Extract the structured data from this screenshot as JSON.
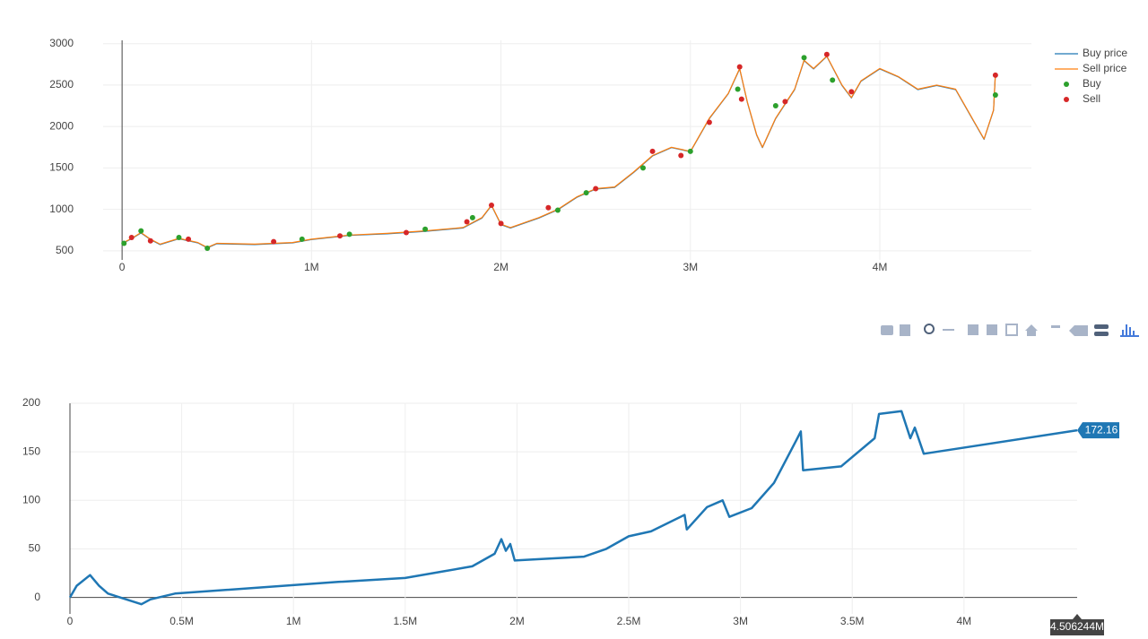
{
  "chart_data": [
    {
      "type": "line",
      "xlim": [
        -100000,
        4800000
      ],
      "ylim": [
        390,
        3040
      ],
      "xticks": [
        0,
        {
          "value": 1000000,
          "label": "1M"
        },
        {
          "value": 2000000,
          "label": "2M"
        },
        {
          "value": 3000000,
          "label": "3M"
        },
        {
          "value": 4000000,
          "label": "4M"
        }
      ],
      "yticks": [
        500,
        1000,
        1500,
        2000,
        2500,
        3000
      ],
      "grid": true,
      "legend": "right",
      "series": [
        {
          "name": "Buy price",
          "color": "#1f77b4",
          "mode": "lines",
          "x": [
            0,
            50000,
            100000,
            150000,
            200000,
            300000,
            400000,
            450000,
            500000,
            700000,
            900000,
            1000000,
            1200000,
            1400000,
            1600000,
            1800000,
            1900000,
            1950000,
            2000000,
            2050000,
            2200000,
            2300000,
            2400000,
            2500000,
            2600000,
            2700000,
            2800000,
            2900000,
            3000000,
            3100000,
            3200000,
            3260000,
            3300000,
            3350000,
            3380000,
            3450000,
            3550000,
            3600000,
            3650000,
            3720000,
            3800000,
            3850000,
            3900000,
            4000000,
            4100000,
            4200000,
            4300000,
            4400000,
            4500000,
            4550000,
            4600000,
            4610000
          ],
          "values": [
            585,
            645,
            715,
            635,
            575,
            645,
            595,
            535,
            585,
            575,
            595,
            635,
            685,
            705,
            735,
            775,
            895,
            1045,
            815,
            775,
            895,
            995,
            1145,
            1245,
            1265,
            1445,
            1645,
            1745,
            1695,
            2095,
            2395,
            2695,
            2295,
            1895,
            1745,
            2095,
            2445,
            2795,
            2695,
            2845,
            2495,
            2345,
            2545,
            2695,
            2595,
            2445,
            2495,
            2445,
            2045,
            1845,
            2195,
            2645
          ]
        },
        {
          "name": "Sell price",
          "color": "#ff7f0e",
          "mode": "lines",
          "x": [
            0,
            50000,
            100000,
            150000,
            200000,
            300000,
            400000,
            450000,
            500000,
            700000,
            900000,
            1000000,
            1200000,
            1400000,
            1600000,
            1800000,
            1900000,
            1950000,
            2000000,
            2050000,
            2200000,
            2300000,
            2400000,
            2500000,
            2600000,
            2700000,
            2800000,
            2900000,
            3000000,
            3100000,
            3200000,
            3260000,
            3300000,
            3350000,
            3380000,
            3450000,
            3550000,
            3600000,
            3650000,
            3720000,
            3800000,
            3850000,
            3900000,
            4000000,
            4100000,
            4200000,
            4300000,
            4400000,
            4500000,
            4550000,
            4600000,
            4610000
          ],
          "values": [
            590,
            650,
            720,
            640,
            580,
            650,
            600,
            540,
            590,
            580,
            600,
            640,
            690,
            710,
            740,
            780,
            900,
            1050,
            820,
            780,
            900,
            1000,
            1150,
            1250,
            1270,
            1450,
            1650,
            1750,
            1700,
            2100,
            2400,
            2700,
            2300,
            1900,
            1750,
            2100,
            2450,
            2800,
            2700,
            2850,
            2500,
            2350,
            2550,
            2700,
            2600,
            2450,
            2500,
            2450,
            2050,
            1850,
            2200,
            2650
          ]
        },
        {
          "name": "Buy",
          "color": "#2ca02c",
          "mode": "markers",
          "x": [
            10000,
            100000,
            300000,
            450000,
            950000,
            1200000,
            1600000,
            1850000,
            2300000,
            2450000,
            2750000,
            3000000,
            3250000,
            3450000,
            3600000,
            3750000,
            4610000
          ],
          "values": [
            590,
            740,
            660,
            530,
            640,
            700,
            760,
            900,
            990,
            1200,
            1500,
            1700,
            2450,
            2250,
            2830,
            2560,
            2380
          ]
        },
        {
          "name": "Sell",
          "color": "#d62728",
          "mode": "markers",
          "x": [
            50000,
            150000,
            350000,
            800000,
            1150000,
            1500000,
            1820000,
            1950000,
            2000000,
            2250000,
            2500000,
            2800000,
            2950000,
            3100000,
            3260000,
            3270000,
            3500000,
            3720000,
            3850000,
            4610000
          ],
          "values": [
            660,
            620,
            640,
            610,
            680,
            720,
            850,
            1050,
            830,
            1020,
            1250,
            1700,
            1650,
            2050,
            2720,
            2330,
            2300,
            2870,
            2420,
            2620
          ]
        }
      ]
    },
    {
      "type": "line",
      "xlim": [
        0,
        4506244
      ],
      "ylim": [
        -17,
        200
      ],
      "xticks": [
        0,
        {
          "value": 500000,
          "label": "0.5M"
        },
        {
          "value": 1000000,
          "label": "1M"
        },
        {
          "value": 1500000,
          "label": "1.5M"
        },
        {
          "value": 2000000,
          "label": "2M"
        },
        {
          "value": 2500000,
          "label": "2.5M"
        },
        {
          "value": 3000000,
          "label": "3M"
        },
        {
          "value": 3500000,
          "label": "3.5M"
        },
        {
          "value": 4000000,
          "label": "4M"
        }
      ],
      "yticks": [
        0,
        50,
        100,
        150,
        200
      ],
      "grid": true,
      "hover_x_label": "4.506244M",
      "series": [
        {
          "color": "#1f77b4",
          "mode": "lines",
          "x": [
            0,
            30000,
            90000,
            130000,
            170000,
            320000,
            360000,
            470000,
            1200000,
            1500000,
            1800000,
            1900000,
            1930000,
            1950000,
            1970000,
            1990000,
            2300000,
            2400000,
            2500000,
            2600000,
            2750000,
            2760000,
            2850000,
            2920000,
            2950000,
            3050000,
            3150000,
            3250000,
            3270000,
            3280000,
            3450000,
            3600000,
            3620000,
            3720000,
            3760000,
            3780000,
            3820000,
            4506244
          ],
          "values": [
            0,
            12,
            23,
            12,
            4,
            -7,
            -2,
            4,
            16,
            20,
            32,
            45,
            60,
            48,
            55,
            38,
            42,
            50,
            63,
            68,
            85,
            70,
            93,
            100,
            83,
            92,
            118,
            162,
            171,
            131,
            135,
            164,
            189,
            192,
            164,
            175,
            148,
            172.16
          ]
        }
      ]
    }
  ]
}
